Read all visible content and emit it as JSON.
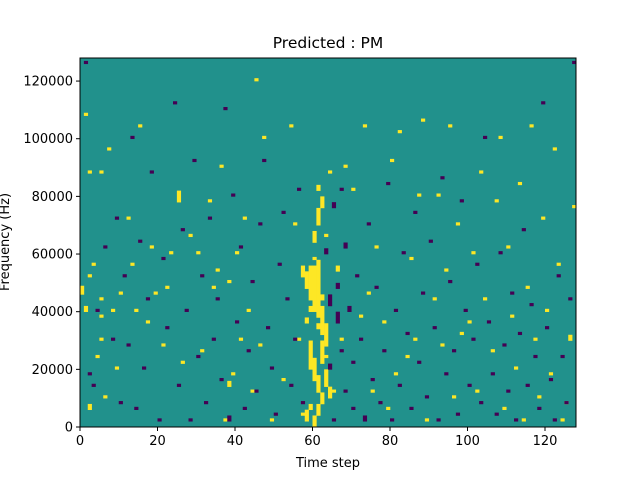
{
  "chart_data": {
    "type": "heatmap",
    "title": "Predicted : PM",
    "xlabel": "Time step",
    "ylabel": "Frequency (Hz)",
    "xlim": [
      0,
      128
    ],
    "ylim": [
      0,
      128000
    ],
    "x_ticks": [
      0,
      20,
      40,
      60,
      80,
      100,
      120
    ],
    "y_ticks": [
      0,
      20000,
      40000,
      60000,
      80000,
      100000,
      120000
    ],
    "x_tick_labels": [
      "0",
      "20",
      "40",
      "60",
      "80",
      "100",
      "120"
    ],
    "y_tick_labels": [
      "0",
      "20000",
      "40000",
      "60000",
      "80000",
      "100000",
      "120000"
    ],
    "grid": false,
    "colorbar": false,
    "colormap": "viridis",
    "background_value": 0,
    "classes": {
      "low": {
        "value": -1,
        "color": "#440154"
      },
      "mid": {
        "value": 0,
        "color": "#21918c"
      },
      "high": {
        "value": 1,
        "color": "#fde725"
      }
    },
    "cells": {
      "columns": 128,
      "rows": 128,
      "row_height_hz": 1000,
      "high": [
        [
          0,
          46000,
          3000
        ],
        [
          1,
          40000,
          2000
        ],
        [
          1,
          108000,
          1000
        ],
        [
          2,
          6000,
          2000
        ],
        [
          2,
          52000,
          1000
        ],
        [
          2,
          88000,
          1000
        ],
        [
          3,
          56000,
          1000
        ],
        [
          4,
          24000,
          1000
        ],
        [
          5,
          88000,
          1000
        ],
        [
          5,
          30000,
          1000
        ],
        [
          5,
          38000,
          1000
        ],
        [
          5,
          44000,
          1000
        ],
        [
          6,
          10000,
          1000
        ],
        [
          7,
          96000,
          1000
        ],
        [
          8,
          40000,
          1000
        ],
        [
          9,
          20000,
          1000
        ],
        [
          10,
          46000,
          1000
        ],
        [
          12,
          72000,
          1000
        ],
        [
          13,
          56000,
          1000
        ],
        [
          14,
          40000,
          1000
        ],
        [
          15,
          104000,
          1000
        ],
        [
          17,
          36000,
          1000
        ],
        [
          18,
          62000,
          1000
        ],
        [
          19,
          46000,
          1000
        ],
        [
          21,
          28000,
          1000
        ],
        [
          22,
          48000,
          1000
        ],
        [
          23,
          60000,
          1000
        ],
        [
          25,
          78000,
          4000
        ],
        [
          26,
          22000,
          1000
        ],
        [
          28,
          66000,
          1000
        ],
        [
          30,
          60000,
          1000
        ],
        [
          31,
          26000,
          1000
        ],
        [
          33,
          78000,
          1000
        ],
        [
          34,
          48000,
          1000
        ],
        [
          35,
          54000,
          1000
        ],
        [
          36,
          90000,
          1000
        ],
        [
          37,
          2000,
          1000
        ],
        [
          38,
          14000,
          2000
        ],
        [
          38,
          50000,
          1000
        ],
        [
          39,
          18000,
          1000
        ],
        [
          40,
          60000,
          1000
        ],
        [
          41,
          30000,
          1000
        ],
        [
          42,
          72000,
          1000
        ],
        [
          43,
          40000,
          1000
        ],
        [
          44,
          12000,
          1000
        ],
        [
          45,
          120000,
          1000
        ],
        [
          46,
          28000,
          1000
        ],
        [
          47,
          100000,
          1000
        ],
        [
          49,
          2000,
          1000
        ],
        [
          52,
          16000,
          1000
        ],
        [
          54,
          104000,
          1000
        ],
        [
          55,
          70000,
          1000
        ],
        [
          56,
          30000,
          1000
        ],
        [
          57,
          4000,
          1000
        ],
        [
          58,
          36000,
          2000
        ],
        [
          59,
          40000,
          2000
        ],
        [
          60,
          58000,
          1000
        ],
        [
          61,
          34000,
          2000
        ],
        [
          62,
          44000,
          2000
        ],
        [
          63,
          24000,
          1000
        ],
        [
          63,
          66000,
          1000
        ],
        [
          64,
          88000,
          1000
        ],
        [
          65,
          12000,
          1000
        ],
        [
          66,
          54000,
          2000
        ],
        [
          67,
          30000,
          1000
        ],
        [
          68,
          90000,
          1000
        ],
        [
          70,
          82000,
          1000
        ],
        [
          72,
          38000,
          1000
        ],
        [
          73,
          104000,
          1000
        ],
        [
          74,
          46000,
          1000
        ],
        [
          75,
          12000,
          1000
        ],
        [
          76,
          62000,
          1000
        ],
        [
          78,
          36000,
          1000
        ],
        [
          79,
          6000,
          1000
        ],
        [
          80,
          92000,
          1000
        ],
        [
          81,
          18000,
          1000
        ],
        [
          82,
          102000,
          1000
        ],
        [
          84,
          24000,
          1000
        ],
        [
          85,
          58000,
          1000
        ],
        [
          86,
          30000,
          1000
        ],
        [
          87,
          80000,
          1000
        ],
        [
          88,
          106000,
          1000
        ],
        [
          89,
          2000,
          1000
        ],
        [
          91,
          44000,
          1000
        ],
        [
          92,
          80000,
          1000
        ],
        [
          93,
          28000,
          1000
        ],
        [
          94,
          54000,
          1000
        ],
        [
          95,
          104000,
          1000
        ],
        [
          96,
          10000,
          1000
        ],
        [
          97,
          70000,
          1000
        ],
        [
          98,
          32000,
          1000
        ],
        [
          100,
          36000,
          1000
        ],
        [
          101,
          60000,
          1000
        ],
        [
          102,
          12000,
          1000
        ],
        [
          103,
          88000,
          1000
        ],
        [
          104,
          44000,
          1000
        ],
        [
          106,
          26000,
          1000
        ],
        [
          107,
          78000,
          1000
        ],
        [
          108,
          100000,
          1000
        ],
        [
          109,
          6000,
          1000
        ],
        [
          110,
          62000,
          1000
        ],
        [
          111,
          38000,
          1000
        ],
        [
          112,
          20000,
          1000
        ],
        [
          113,
          84000,
          1000
        ],
        [
          114,
          2000,
          1000
        ],
        [
          115,
          48000,
          1000
        ],
        [
          116,
          104000,
          1000
        ],
        [
          117,
          30000,
          1000
        ],
        [
          118,
          10000,
          1000
        ],
        [
          119,
          72000,
          1000
        ],
        [
          120,
          40000,
          1000
        ],
        [
          121,
          18000,
          1000
        ],
        [
          122,
          96000,
          1000
        ],
        [
          123,
          56000,
          1000
        ],
        [
          124,
          2000,
          1000
        ],
        [
          125,
          8000,
          1000
        ],
        [
          126,
          30000,
          2000
        ],
        [
          127,
          76000,
          1000
        ],
        [
          57,
          52000,
          4000
        ],
        [
          58,
          48000,
          6000
        ],
        [
          59,
          44000,
          12000
        ],
        [
          60,
          40000,
          16000
        ],
        [
          61,
          38000,
          20000
        ],
        [
          62,
          32000,
          10000
        ],
        [
          63,
          28000,
          8000
        ],
        [
          62,
          22000,
          8000
        ],
        [
          63,
          14000,
          6000
        ],
        [
          64,
          10000,
          4000
        ],
        [
          59,
          20000,
          10000
        ],
        [
          60,
          16000,
          8000
        ],
        [
          61,
          12000,
          6000
        ],
        [
          62,
          8000,
          4000
        ],
        [
          61,
          4000,
          4000
        ],
        [
          60,
          0,
          4000
        ],
        [
          58,
          2000,
          4000
        ],
        [
          59,
          6000,
          2000
        ],
        [
          60,
          64000,
          4000
        ],
        [
          61,
          70000,
          6000
        ],
        [
          62,
          76000,
          4000
        ],
        [
          61,
          82000,
          2000
        ]
      ],
      "low": [
        [
          1,
          126000,
          1000
        ],
        [
          2,
          18000,
          1000
        ],
        [
          3,
          14000,
          1000
        ],
        [
          4,
          40000,
          1000
        ],
        [
          6,
          62000,
          1000
        ],
        [
          8,
          30000,
          1000
        ],
        [
          9,
          72000,
          1000
        ],
        [
          10,
          8000,
          1000
        ],
        [
          11,
          52000,
          1000
        ],
        [
          12,
          28000,
          1000
        ],
        [
          13,
          100000,
          1000
        ],
        [
          14,
          6000,
          1000
        ],
        [
          15,
          64000,
          1000
        ],
        [
          16,
          20000,
          1000
        ],
        [
          17,
          44000,
          1000
        ],
        [
          18,
          88000,
          1000
        ],
        [
          20,
          2000,
          1000
        ],
        [
          21,
          58000,
          1000
        ],
        [
          22,
          34000,
          1000
        ],
        [
          24,
          112000,
          1000
        ],
        [
          25,
          14000,
          1000
        ],
        [
          26,
          68000,
          1000
        ],
        [
          27,
          40000,
          1000
        ],
        [
          28,
          2000,
          1000
        ],
        [
          29,
          92000,
          1000
        ],
        [
          30,
          24000,
          1000
        ],
        [
          31,
          52000,
          1000
        ],
        [
          32,
          8000,
          1000
        ],
        [
          33,
          72000,
          1000
        ],
        [
          34,
          30000,
          1000
        ],
        [
          35,
          44000,
          1000
        ],
        [
          36,
          16000,
          1000
        ],
        [
          37,
          110000,
          1000
        ],
        [
          38,
          2000,
          2000
        ],
        [
          39,
          80000,
          1000
        ],
        [
          40,
          36000,
          1000
        ],
        [
          41,
          62000,
          1000
        ],
        [
          42,
          6000,
          1000
        ],
        [
          43,
          26000,
          1000
        ],
        [
          44,
          50000,
          1000
        ],
        [
          45,
          12000,
          1000
        ],
        [
          46,
          70000,
          1000
        ],
        [
          47,
          92000,
          1000
        ],
        [
          48,
          34000,
          1000
        ],
        [
          49,
          20000,
          1000
        ],
        [
          50,
          4000,
          1000
        ],
        [
          51,
          56000,
          1000
        ],
        [
          52,
          74000,
          1000
        ],
        [
          53,
          44000,
          1000
        ],
        [
          54,
          14000,
          1000
        ],
        [
          55,
          30000,
          1000
        ],
        [
          56,
          82000,
          1000
        ],
        [
          57,
          8000,
          1000
        ],
        [
          63,
          60000,
          2000
        ],
        [
          64,
          42000,
          4000
        ],
        [
          64,
          20000,
          2000
        ],
        [
          65,
          2000,
          1000
        ],
        [
          65,
          76000,
          2000
        ],
        [
          66,
          36000,
          4000
        ],
        [
          66,
          48000,
          2000
        ],
        [
          67,
          26000,
          1000
        ],
        [
          67,
          82000,
          1000
        ],
        [
          68,
          12000,
          1000
        ],
        [
          68,
          62000,
          2000
        ],
        [
          69,
          40000,
          2000
        ],
        [
          70,
          6000,
          1000
        ],
        [
          70,
          22000,
          1000
        ],
        [
          71,
          52000,
          1000
        ],
        [
          72,
          30000,
          1000
        ],
        [
          73,
          2000,
          2000
        ],
        [
          74,
          70000,
          1000
        ],
        [
          75,
          16000,
          1000
        ],
        [
          76,
          48000,
          1000
        ],
        [
          77,
          8000,
          1000
        ],
        [
          78,
          26000,
          1000
        ],
        [
          79,
          84000,
          1000
        ],
        [
          80,
          2000,
          1000
        ],
        [
          81,
          40000,
          1000
        ],
        [
          82,
          14000,
          1000
        ],
        [
          83,
          60000,
          1000
        ],
        [
          84,
          32000,
          1000
        ],
        [
          85,
          6000,
          1000
        ],
        [
          86,
          74000,
          1000
        ],
        [
          87,
          22000,
          1000
        ],
        [
          88,
          46000,
          1000
        ],
        [
          89,
          10000,
          1000
        ],
        [
          90,
          64000,
          1000
        ],
        [
          91,
          34000,
          1000
        ],
        [
          92,
          2000,
          1000
        ],
        [
          93,
          86000,
          1000
        ],
        [
          94,
          18000,
          1000
        ],
        [
          95,
          50000,
          1000
        ],
        [
          96,
          26000,
          1000
        ],
        [
          97,
          4000,
          1000
        ],
        [
          98,
          78000,
          1000
        ],
        [
          99,
          40000,
          1000
        ],
        [
          100,
          14000,
          1000
        ],
        [
          101,
          30000,
          1000
        ],
        [
          102,
          56000,
          1000
        ],
        [
          103,
          8000,
          1000
        ],
        [
          104,
          100000,
          1000
        ],
        [
          105,
          36000,
          1000
        ],
        [
          106,
          18000,
          1000
        ],
        [
          107,
          4000,
          1000
        ],
        [
          108,
          60000,
          1000
        ],
        [
          109,
          28000,
          1000
        ],
        [
          110,
          12000,
          1000
        ],
        [
          111,
          46000,
          1000
        ],
        [
          112,
          2000,
          1000
        ],
        [
          113,
          32000,
          1000
        ],
        [
          114,
          68000,
          1000
        ],
        [
          115,
          14000,
          1000
        ],
        [
          116,
          42000,
          1000
        ],
        [
          117,
          24000,
          1000
        ],
        [
          118,
          6000,
          1000
        ],
        [
          119,
          112000,
          1000
        ],
        [
          120,
          34000,
          1000
        ],
        [
          121,
          16000,
          1000
        ],
        [
          122,
          2000,
          1000
        ],
        [
          123,
          52000,
          1000
        ],
        [
          124,
          24000,
          1000
        ],
        [
          125,
          8000,
          1000
        ],
        [
          126,
          44000,
          1000
        ],
        [
          127,
          126000,
          1000
        ]
      ]
    }
  }
}
